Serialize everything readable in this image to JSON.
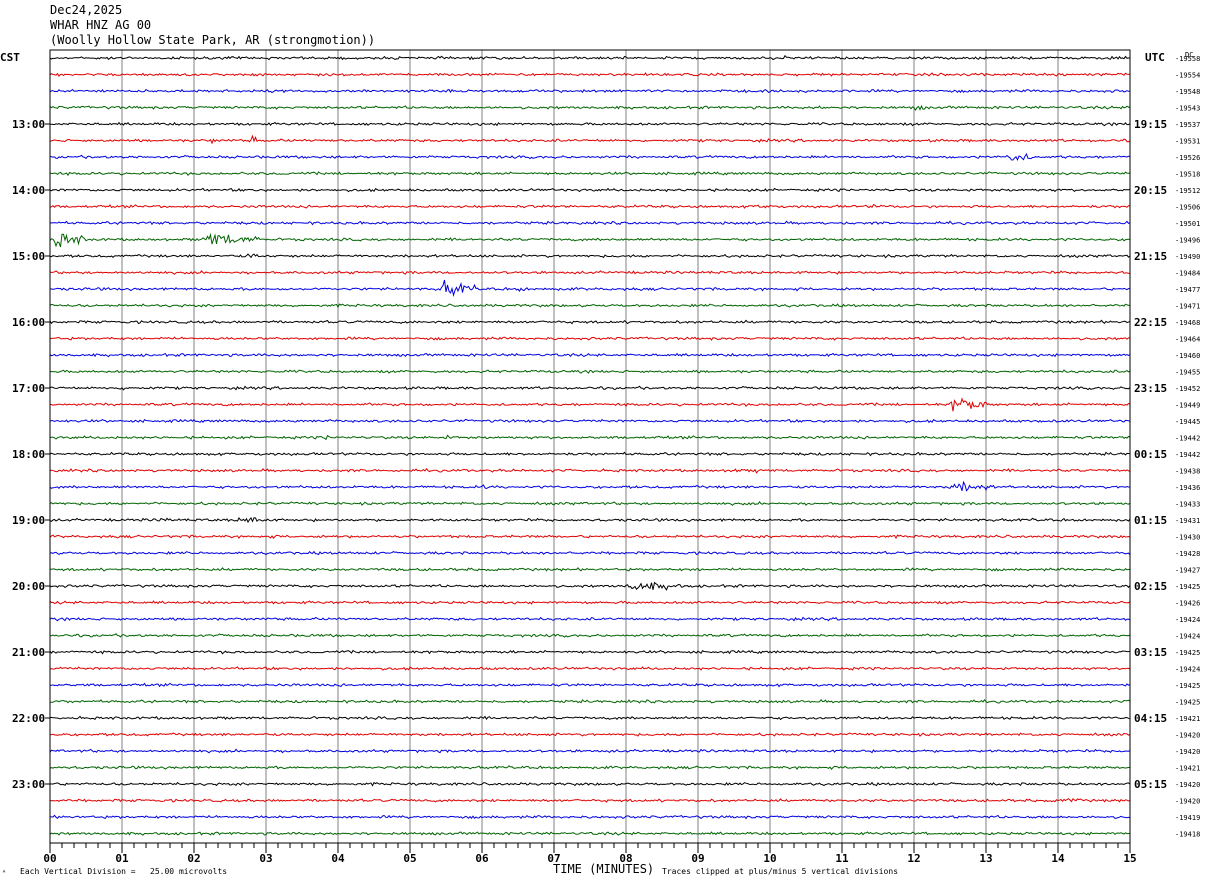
{
  "header": {
    "date": "Dec24,2025",
    "station": "WHAR HNZ AG 00",
    "location": "(Woolly Hollow State Park, AR (strongmotion))"
  },
  "footer": {
    "scale_note": "Each Vertical Division =   25.00 microvolts",
    "clip_note": "Traces clipped at plus/minus 5 vertical divisions",
    "corner_mark": "ᴬ"
  },
  "colors": {
    "trace_cycle": [
      "#000000",
      "#e00000",
      "#0000e0",
      "#006400"
    ],
    "grid": "#808080",
    "frame": "#000000"
  },
  "chart_data": {
    "type": "line",
    "subtype": "helicorder",
    "xlabel": "TIME (MINUTES)",
    "x_ticks": [
      "00",
      "01",
      "02",
      "03",
      "04",
      "05",
      "06",
      "07",
      "08",
      "09",
      "10",
      "11",
      "12",
      "13",
      "14",
      "15"
    ],
    "xlim": [
      0,
      15
    ],
    "left_axis_title": "CST",
    "right_axis_title": "UTC",
    "right_top_label": "DC",
    "left_hour_labels": [
      "13:00",
      "14:00",
      "15:00",
      "16:00",
      "17:00",
      "18:00",
      "19:00",
      "20:00",
      "21:00",
      "22:00",
      "23:00"
    ],
    "right_hour_labels": [
      "19:15",
      "20:15",
      "21:15",
      "22:15",
      "23:15",
      "00:15",
      "01:15",
      "02:15",
      "03:15",
      "04:15",
      "05:15"
    ],
    "first_labeled_row": 4,
    "rows_per_hour": 4,
    "row_count": 48,
    "dc_offsets": [
      "-19558",
      "-19554",
      "-19548",
      "-19543",
      "-19537",
      "-19531",
      "-19526",
      "-19518",
      "-19512",
      "-19506",
      "-19501",
      "-19496",
      "-19490",
      "-19484",
      "-19477",
      "-19471",
      "-19468",
      "-19464",
      "-19460",
      "-19455",
      "-19452",
      "-19449",
      "-19445",
      "-19442",
      "-19442",
      "-19438",
      "-19436",
      "-19433",
      "-19431",
      "-19430",
      "-19428",
      "-19427",
      "-19425",
      "-19426",
      "-19424",
      "-19424",
      "-19425",
      "-19424",
      "-19425",
      "-19425",
      "-19421",
      "-19420",
      "-19420",
      "-19421",
      "-19420",
      "-19420",
      "-19419",
      "-19418"
    ],
    "noise_amplitude": 1.2,
    "events": [
      {
        "row": 0,
        "minute": 10.2,
        "duration": 0.15,
        "amplitude": 3
      },
      {
        "row": 3,
        "minute": 10.65,
        "duration": 0.1,
        "amplitude": 3
      },
      {
        "row": 3,
        "minute": 12.0,
        "duration": 0.15,
        "amplitude": 4
      },
      {
        "row": 5,
        "minute": 2.25,
        "duration": 0.05,
        "amplitude": 9
      },
      {
        "row": 5,
        "minute": 2.8,
        "duration": 0.08,
        "amplitude": 5
      },
      {
        "row": 6,
        "minute": 11.35,
        "duration": 0.05,
        "amplitude": 7
      },
      {
        "row": 6,
        "minute": 13.25,
        "duration": 0.4,
        "amplitude": 6
      },
      {
        "row": 9,
        "minute": 9.8,
        "duration": 0.3,
        "amplitude": 3
      },
      {
        "row": 9,
        "minute": 11.4,
        "duration": 0.1,
        "amplitude": 4
      },
      {
        "row": 11,
        "minute": 0.0,
        "duration": 0.5,
        "amplitude": 8
      },
      {
        "row": 11,
        "minute": 2.1,
        "duration": 0.8,
        "amplitude": 7
      },
      {
        "row": 12,
        "minute": 2.7,
        "duration": 0.3,
        "amplitude": 3
      },
      {
        "row": 14,
        "minute": 5.4,
        "duration": 0.5,
        "amplitude": 8
      },
      {
        "row": 14,
        "minute": 6.5,
        "duration": 0.15,
        "amplitude": 3
      },
      {
        "row": 20,
        "minute": 1.0,
        "duration": 0.1,
        "amplitude": 3
      },
      {
        "row": 21,
        "minute": 12.5,
        "duration": 0.5,
        "amplitude": 8
      },
      {
        "row": 23,
        "minute": 3.8,
        "duration": 0.1,
        "amplitude": 4
      },
      {
        "row": 23,
        "minute": 5.5,
        "duration": 0.1,
        "amplitude": 3
      },
      {
        "row": 25,
        "minute": 9.45,
        "duration": 0.1,
        "amplitude": 5
      },
      {
        "row": 25,
        "minute": 9.8,
        "duration": 0.1,
        "amplitude": 4
      },
      {
        "row": 26,
        "minute": 12.5,
        "duration": 0.6,
        "amplitude": 6
      },
      {
        "row": 26,
        "minute": 6.0,
        "duration": 0.1,
        "amplitude": 3
      },
      {
        "row": 28,
        "minute": 1.5,
        "duration": 0.2,
        "amplitude": 3
      },
      {
        "row": 28,
        "minute": 2.6,
        "duration": 0.5,
        "amplitude": 4
      },
      {
        "row": 29,
        "minute": 3.0,
        "duration": 0.1,
        "amplitude": 3
      },
      {
        "row": 32,
        "minute": 8.0,
        "duration": 0.8,
        "amplitude": 5
      },
      {
        "row": 45,
        "minute": 14.0,
        "duration": 0.4,
        "amplitude": 3
      }
    ]
  }
}
